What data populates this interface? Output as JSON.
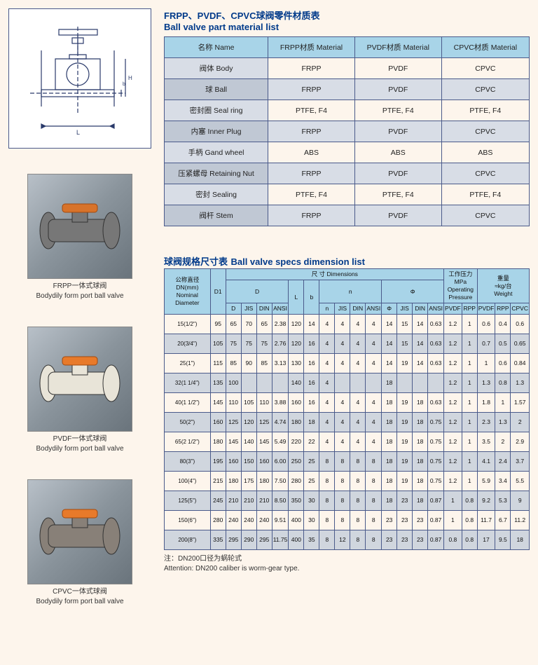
{
  "titles": {
    "t1_cn": "FRPP、PVDF、CPVC球阀零件材质表",
    "t1_en": "Ball valve part material list",
    "t2_cn": "球阀规格尺寸表",
    "t2_en": "Ball valve specs dimension list"
  },
  "thumbs": [
    {
      "cn": "FRPP一体式球阀",
      "en": "Bodydily form port ball valve",
      "body": "#777",
      "handle": "#d8732a"
    },
    {
      "cn": "PVDF一体式球阀",
      "en": "Bodydily form port ball valve",
      "body": "#e8e4d8",
      "handle": "#e87a2a"
    },
    {
      "cn": "CPVC一体式球阀",
      "en": "Bodydily form port ball valve",
      "body": "#888078",
      "handle": "#e87a2a"
    }
  ],
  "t1": {
    "headers": [
      "名称 Name",
      "FRPP材质 Material",
      "PVDF材质 Material",
      "CPVC材质 Material"
    ],
    "rows": [
      [
        "阀体 Body",
        "FRPP",
        "PVDF",
        "CPVC"
      ],
      [
        "球 Ball",
        "FRPP",
        "PVDF",
        "CPVC"
      ],
      [
        "密封圈 Seal ring",
        "PTFE, F4",
        "PTFE, F4",
        "PTFE, F4"
      ],
      [
        "内塞 Inner Plug",
        "FRPP",
        "PVDF",
        "CPVC"
      ],
      [
        "手柄 Gand wheel",
        "ABS",
        "ABS",
        "ABS"
      ],
      [
        "压紧螺母 Retaining Nut",
        "FRPP",
        "PVDF",
        "CPVC"
      ],
      [
        "密封 Sealing",
        "PTFE, F4",
        "PTFE, F4",
        "PTFE, F4"
      ],
      [
        "阀杆 Stem",
        "FRPP",
        "PVDF",
        "CPVC"
      ]
    ]
  },
  "t2": {
    "top_labels": {
      "dn": "公称直径\nDN(mm)\nNominal\nDiameter",
      "d1": "D1",
      "dim": "尺 寸 Dimensions",
      "d": "D",
      "l": "L",
      "b": "b",
      "n": "n",
      "phi": "Φ",
      "press": "工作压力\nMPa\nOperating\nPressure",
      "weight": "重量\n≈kg/台\nWeight"
    },
    "subD": [
      "D",
      "JIS",
      "DIN",
      "ANSI"
    ],
    "subn": [
      "n",
      "JIS",
      "DIN",
      "ANSI"
    ],
    "subphi": [
      "Φ",
      "JIS",
      "DIN",
      "ANSI"
    ],
    "subpress": [
      "PVDF",
      "RPP"
    ],
    "subweight": [
      "PVDF",
      "RPP",
      "CPVC"
    ],
    "rows": [
      [
        "15(1/2\")",
        "95",
        "65",
        "70",
        "65",
        "2.38",
        "120",
        "14",
        "4",
        "4",
        "4",
        "4",
        "14",
        "15",
        "14",
        "0.63",
        "1.2",
        "1",
        "0.6",
        "0.4",
        "0.6"
      ],
      [
        "20(3/4\")",
        "105",
        "75",
        "75",
        "75",
        "2.76",
        "120",
        "16",
        "4",
        "4",
        "4",
        "4",
        "14",
        "15",
        "14",
        "0.63",
        "1.2",
        "1",
        "0.7",
        "0.5",
        "0.65"
      ],
      [
        "25(1\")",
        "115",
        "85",
        "90",
        "85",
        "3.13",
        "130",
        "16",
        "4",
        "4",
        "4",
        "4",
        "14",
        "19",
        "14",
        "0.63",
        "1.2",
        "1",
        "1",
        "0.6",
        "0.84"
      ],
      [
        "32(1 1/4\")",
        "135",
        "100",
        "",
        "",
        "",
        "140",
        "16",
        "4",
        "",
        "",
        "",
        "18",
        "",
        "",
        "",
        "1.2",
        "1",
        "1.3",
        "0.8",
        "1.3"
      ],
      [
        "40(1 1/2\")",
        "145",
        "110",
        "105",
        "110",
        "3.88",
        "160",
        "16",
        "4",
        "4",
        "4",
        "4",
        "18",
        "19",
        "18",
        "0.63",
        "1.2",
        "1",
        "1.8",
        "1",
        "1.57"
      ],
      [
        "50(2\")",
        "160",
        "125",
        "120",
        "125",
        "4.74",
        "180",
        "18",
        "4",
        "4",
        "4",
        "4",
        "18",
        "19",
        "18",
        "0.75",
        "1.2",
        "1",
        "2.3",
        "1.3",
        "2"
      ],
      [
        "65(2 1/2\")",
        "180",
        "145",
        "140",
        "145",
        "5.49",
        "220",
        "22",
        "4",
        "4",
        "4",
        "4",
        "18",
        "19",
        "18",
        "0.75",
        "1.2",
        "1",
        "3.5",
        "2",
        "2.9"
      ],
      [
        "80(3\")",
        "195",
        "160",
        "150",
        "160",
        "6.00",
        "250",
        "25",
        "8",
        "8",
        "8",
        "8",
        "18",
        "19",
        "18",
        "0.75",
        "1.2",
        "1",
        "4.1",
        "2.4",
        "3.7"
      ],
      [
        "100(4\")",
        "215",
        "180",
        "175",
        "180",
        "7.50",
        "280",
        "25",
        "8",
        "8",
        "8",
        "8",
        "18",
        "19",
        "18",
        "0.75",
        "1.2",
        "1",
        "5.9",
        "3.4",
        "5.5"
      ],
      [
        "125(5\")",
        "245",
        "210",
        "210",
        "210",
        "8.50",
        "350",
        "30",
        "8",
        "8",
        "8",
        "8",
        "18",
        "23",
        "18",
        "0.87",
        "1",
        "0.8",
        "9.2",
        "5.3",
        "9"
      ],
      [
        "150(6\")",
        "280",
        "240",
        "240",
        "240",
        "9.51",
        "400",
        "30",
        "8",
        "8",
        "8",
        "8",
        "23",
        "23",
        "23",
        "0.87",
        "1",
        "0.8",
        "11.7",
        "6.7",
        "11.2"
      ],
      [
        "200(8\")",
        "335",
        "295",
        "290",
        "295",
        "11.75",
        "400",
        "35",
        "8",
        "12",
        "8",
        "8",
        "23",
        "23",
        "23",
        "0.87",
        "0.8",
        "0.8",
        "17",
        "9.5",
        "18"
      ]
    ]
  },
  "note_cn": "注：DN200口径为蜗轮式",
  "note_en": "Attention: DN200 caliber is worm-gear type.",
  "colors": {
    "bg": "#fdf5ec",
    "border": "#4a5a8a",
    "header_bg": "#a8d4e8",
    "zebra_bg": "#d8dde6",
    "title": "#003a8a"
  }
}
